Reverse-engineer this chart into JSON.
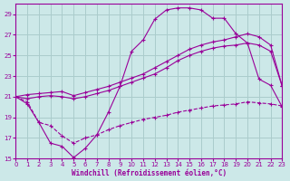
{
  "xlabel": "Windchill (Refroidissement éolien,°C)",
  "bg_color": "#cce8e8",
  "grid_color": "#aacccc",
  "line_color": "#990099",
  "xlim": [
    0,
    23
  ],
  "ylim": [
    15,
    30
  ],
  "yticks": [
    15,
    17,
    19,
    21,
    23,
    25,
    27,
    29
  ],
  "xticks": [
    0,
    1,
    2,
    3,
    4,
    5,
    6,
    7,
    8,
    9,
    10,
    11,
    12,
    13,
    14,
    15,
    16,
    17,
    18,
    19,
    20,
    21,
    22,
    23
  ],
  "line1_x": [
    0,
    1,
    2,
    3,
    4,
    5,
    6,
    7,
    8,
    9,
    10,
    11,
    12,
    13,
    14,
    15,
    16,
    17,
    18,
    19,
    20,
    21,
    22,
    23
  ],
  "line1_y": [
    21.0,
    20.3,
    18.5,
    16.5,
    16.2,
    15.1,
    16.0,
    17.3,
    19.5,
    22.0,
    25.4,
    26.5,
    28.5,
    29.4,
    29.6,
    29.6,
    29.4,
    28.6,
    28.6,
    27.1,
    26.2,
    22.7,
    22.1,
    20.0
  ],
  "line2_x": [
    0,
    1,
    2,
    3,
    4,
    5,
    6,
    7,
    8,
    9,
    10,
    11,
    12,
    13,
    14,
    15,
    16,
    17,
    18,
    19,
    20,
    21,
    22,
    23
  ],
  "line2_y": [
    21.0,
    21.2,
    21.3,
    21.4,
    21.5,
    21.1,
    21.4,
    21.7,
    22.0,
    22.4,
    22.8,
    23.2,
    23.8,
    24.4,
    25.0,
    25.6,
    26.0,
    26.3,
    26.5,
    26.8,
    27.1,
    26.8,
    26.0,
    22.0
  ],
  "line3_x": [
    0,
    1,
    2,
    3,
    4,
    5,
    6,
    7,
    8,
    9,
    10,
    11,
    12,
    13,
    14,
    15,
    16,
    17,
    18,
    19,
    20,
    21,
    22,
    23
  ],
  "line3_y": [
    21.0,
    20.8,
    21.0,
    21.1,
    21.0,
    20.8,
    21.0,
    21.3,
    21.6,
    22.0,
    22.4,
    22.8,
    23.2,
    23.8,
    24.5,
    25.0,
    25.4,
    25.7,
    25.9,
    26.0,
    26.2,
    26.0,
    25.4,
    22.0
  ],
  "line4_x": [
    0,
    1,
    2,
    3,
    4,
    5,
    6,
    7,
    8,
    9,
    10,
    11,
    12,
    13,
    14,
    15,
    16,
    17,
    18,
    19,
    20,
    21,
    22,
    23
  ],
  "line4_y": [
    21.0,
    20.5,
    18.5,
    18.2,
    17.2,
    16.5,
    17.0,
    17.3,
    17.8,
    18.2,
    18.5,
    18.8,
    19.0,
    19.2,
    19.5,
    19.7,
    19.9,
    20.1,
    20.2,
    20.3,
    20.5,
    20.4,
    20.3,
    20.1
  ]
}
